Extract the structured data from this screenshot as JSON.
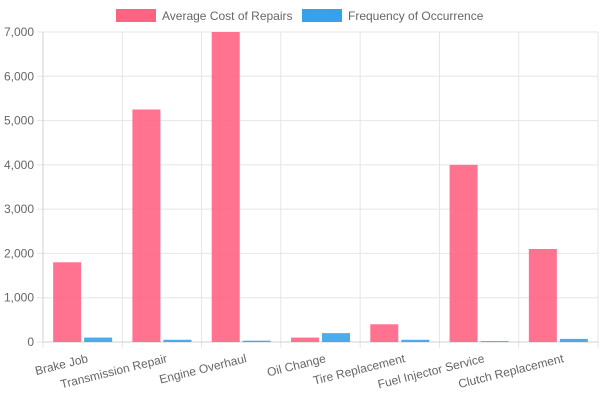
{
  "chart_data": {
    "type": "bar",
    "categories": [
      "Brake Job",
      "Transmission Repair",
      "Engine Overhaul",
      "Oil Change",
      "Tire Replacement",
      "Fuel Injector Service",
      "Clutch Replacement"
    ],
    "series": [
      {
        "name": "Average Cost of Repairs",
        "color": "#ff6384",
        "values": [
          1800,
          5250,
          7000,
          100,
          400,
          4000,
          2100
        ]
      },
      {
        "name": "Frequency of Occurrence",
        "color": "#36a2eb",
        "values": [
          100,
          50,
          30,
          200,
          50,
          20,
          70
        ]
      }
    ],
    "ylim": [
      0,
      7000
    ],
    "yticks": [
      "0",
      "1,000",
      "2,000",
      "3,000",
      "4,000",
      "5,000",
      "6,000",
      "7,000"
    ],
    "grid": true,
    "legend_position": "top"
  }
}
